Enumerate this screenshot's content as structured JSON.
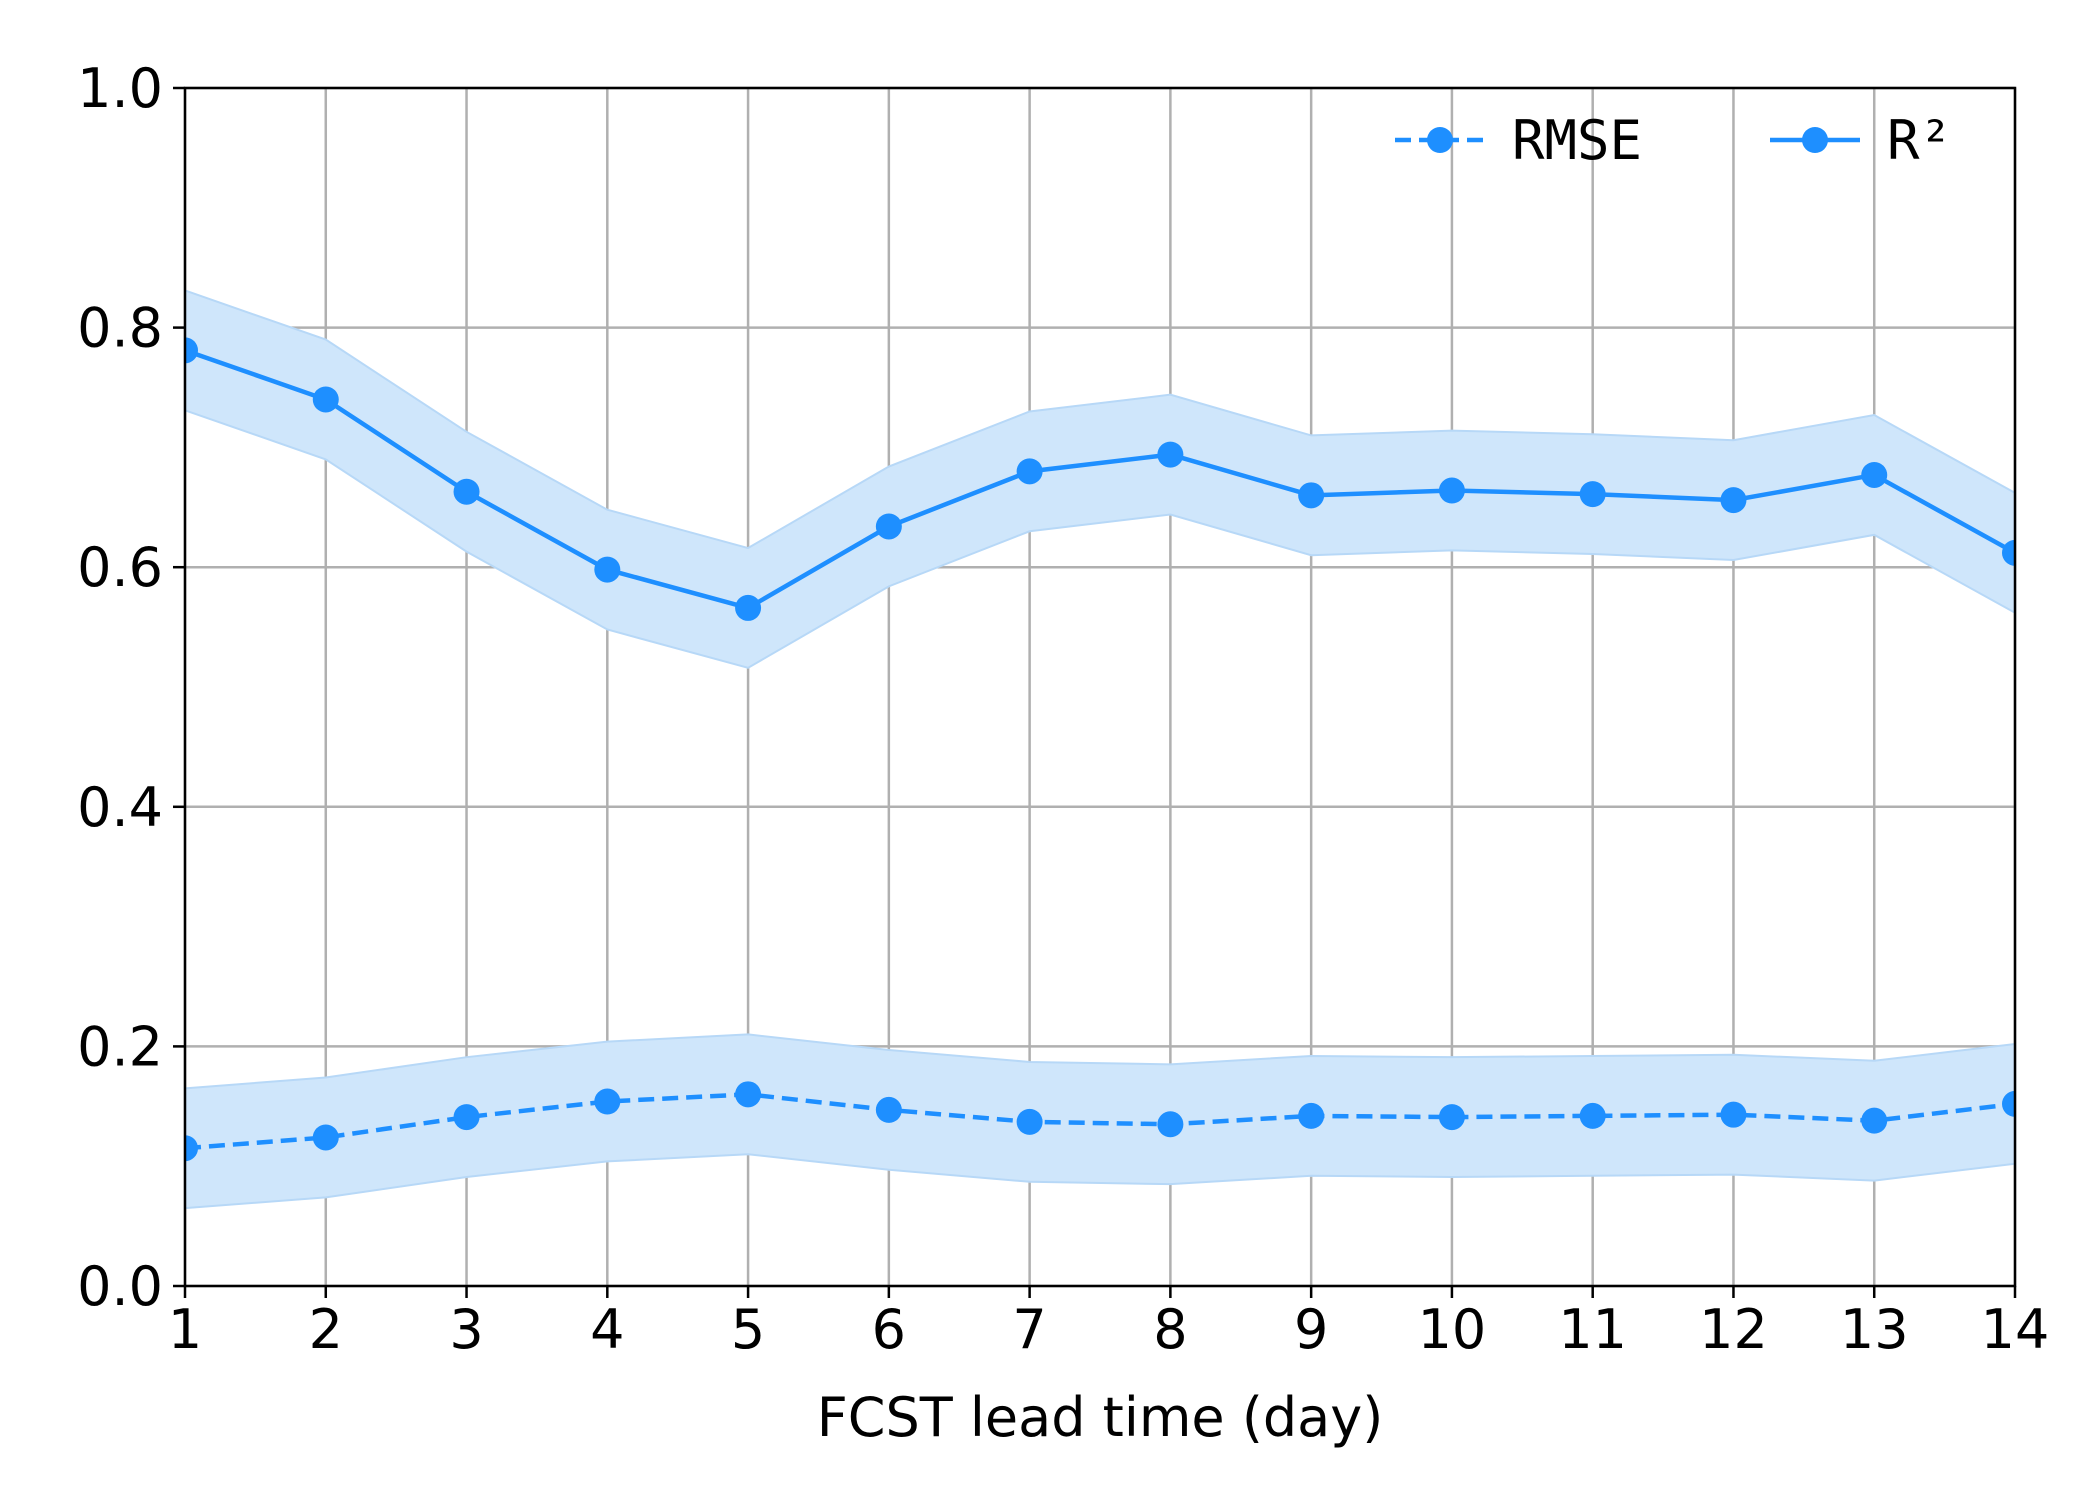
{
  "chart_data": {
    "type": "line",
    "title": "",
    "xlabel": "FCST lead time (day)",
    "ylabel": "",
    "x": [
      1,
      2,
      3,
      4,
      5,
      6,
      7,
      8,
      9,
      10,
      11,
      12,
      13,
      14
    ],
    "xlim": [
      1,
      14
    ],
    "ylim": [
      0.0,
      1.0
    ],
    "xticks": [
      "1",
      "2",
      "3",
      "4",
      "5",
      "6",
      "7",
      "8",
      "9",
      "10",
      "11",
      "12",
      "13",
      "14"
    ],
    "yticks": [
      "0.0",
      "0.2",
      "0.4",
      "0.6",
      "0.8",
      "1.0"
    ],
    "grid": true,
    "legend_position": "top-right",
    "series": [
      {
        "name": "RMSE",
        "line_style": "dashed",
        "marker": "circle",
        "color": "#1e8fff",
        "band_color": "#cfe6fb",
        "values": [
          0.115,
          0.124,
          0.141,
          0.154,
          0.16,
          0.147,
          0.137,
          0.135,
          0.142,
          0.141,
          0.142,
          0.143,
          0.138,
          0.152
        ],
        "band_lower": [
          0.065,
          0.074,
          0.091,
          0.104,
          0.11,
          0.097,
          0.087,
          0.085,
          0.092,
          0.091,
          0.092,
          0.093,
          0.088,
          0.102
        ],
        "band_upper": [
          0.165,
          0.174,
          0.191,
          0.204,
          0.21,
          0.197,
          0.187,
          0.185,
          0.192,
          0.191,
          0.192,
          0.193,
          0.188,
          0.202
        ]
      },
      {
        "name": "R²",
        "line_style": "solid",
        "marker": "circle",
        "color": "#1e8fff",
        "band_color": "#cfe6fb",
        "values": [
          0.781,
          0.74,
          0.663,
          0.598,
          0.566,
          0.634,
          0.68,
          0.694,
          0.66,
          0.664,
          0.661,
          0.656,
          0.677,
          0.612
        ],
        "band_lower": [
          0.731,
          0.69,
          0.613,
          0.548,
          0.516,
          0.584,
          0.63,
          0.644,
          0.61,
          0.614,
          0.611,
          0.606,
          0.627,
          0.562
        ],
        "band_upper": [
          0.831,
          0.79,
          0.713,
          0.648,
          0.616,
          0.684,
          0.73,
          0.744,
          0.71,
          0.714,
          0.711,
          0.706,
          0.727,
          0.662
        ]
      }
    ]
  }
}
